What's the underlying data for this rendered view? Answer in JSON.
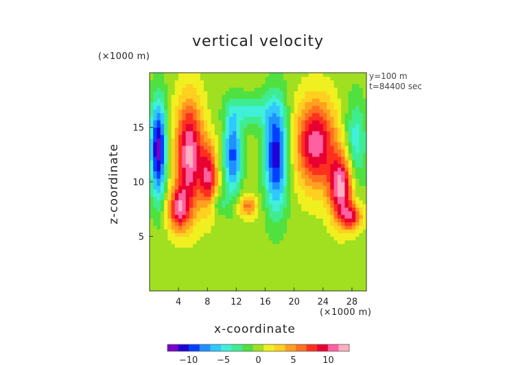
{
  "chart_data": {
    "type": "heatmap",
    "title": "vertical velocity",
    "xlabel": "x-coordinate",
    "ylabel": "z-coordinate",
    "x_unit": "(×1000 m)",
    "z_unit": "(×1000 m)",
    "annotations": [
      "y=100 m",
      "t=84400 sec"
    ],
    "xlim": [
      0,
      30
    ],
    "zlim": [
      0,
      20
    ],
    "x_ticks": [
      "4",
      "8",
      "12",
      "16",
      "20",
      "24",
      "28"
    ],
    "z_ticks": [
      "5",
      "10",
      "15"
    ],
    "colorbar": {
      "range": [
        -13,
        13
      ],
      "ticks": [
        "−10",
        "−5",
        "0",
        "5",
        "10"
      ],
      "colors": [
        "#7a00c8",
        "#2000d8",
        "#0040ff",
        "#2090ff",
        "#30c8ff",
        "#40f0d8",
        "#40ec90",
        "#50e040",
        "#a0e020",
        "#f0f020",
        "#ffd020",
        "#ffa020",
        "#ff7020",
        "#ff3020",
        "#e80030",
        "#ff60a0",
        "#ffb0c0"
      ]
    },
    "background_value": 0,
    "features": [
      {
        "name": "downdraft-left",
        "x": 1.2,
        "z": 13,
        "sx": 1.1,
        "sz": 4.5,
        "value": -12
      },
      {
        "name": "updraft-left-tower",
        "x": 5.5,
        "z": 12.5,
        "sx": 1.9,
        "sz": 5.0,
        "value": 12
      },
      {
        "name": "updraft-left-base",
        "x": 4.0,
        "z": 7.5,
        "sx": 1.5,
        "sz": 2.0,
        "value": 9
      },
      {
        "name": "updraft-left-secondary",
        "x": 8.2,
        "z": 10.5,
        "sx": 1.2,
        "sz": 3.0,
        "value": 9
      },
      {
        "name": "downdraft-center-left",
        "x": 11.5,
        "z": 12.5,
        "sx": 1.2,
        "sz": 3.8,
        "value": -9
      },
      {
        "name": "downdraft-center",
        "x": 17.5,
        "z": 12.5,
        "sx": 1.6,
        "sz": 5.0,
        "value": -11
      },
      {
        "name": "updraft-small",
        "x": 13.5,
        "z": 7.8,
        "sx": 1.4,
        "sz": 1.0,
        "value": 6
      },
      {
        "name": "updraft-right-tower",
        "x": 23.0,
        "z": 13.5,
        "sx": 2.8,
        "sz": 4.0,
        "value": 11
      },
      {
        "name": "updraft-right-lobe",
        "x": 26.5,
        "z": 9.5,
        "sx": 1.6,
        "sz": 3.0,
        "value": 12
      },
      {
        "name": "updraft-right-base",
        "x": 28.0,
        "z": 6.8,
        "sx": 1.5,
        "sz": 1.2,
        "value": 8
      },
      {
        "name": "downdraft-right",
        "x": 28.5,
        "z": 13.5,
        "sx": 1.5,
        "sz": 4.0,
        "value": -5
      },
      {
        "name": "downdraft-top",
        "x": 14.0,
        "z": 16.5,
        "sx": 3.0,
        "sz": 1.5,
        "value": -4
      },
      {
        "name": "downdraft-lower",
        "x": 9.5,
        "z": 8.0,
        "sx": 1.2,
        "sz": 1.0,
        "value": -3
      }
    ]
  }
}
